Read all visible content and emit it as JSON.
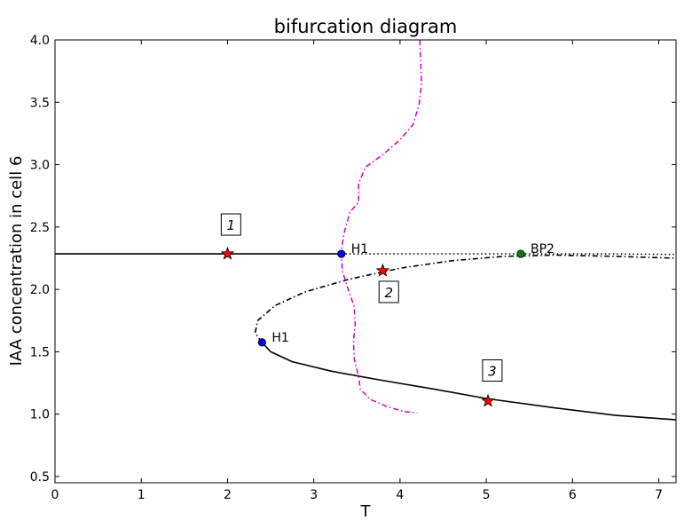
{
  "chart_data": {
    "type": "line",
    "title": "bifurcation diagram",
    "xlabel": "T",
    "ylabel": "IAA concentration in cell 6",
    "xlim": [
      0,
      7.2
    ],
    "ylim": [
      0.45,
      4.0
    ],
    "x_ticks": [
      0,
      1,
      2,
      3,
      4,
      5,
      6,
      7
    ],
    "y_ticks": [
      0.5,
      1.0,
      1.5,
      2.0,
      2.5,
      3.0,
      3.5,
      4.0
    ],
    "x_tick_labels": [
      "0",
      "1",
      "2",
      "3",
      "4",
      "5",
      "6",
      "7"
    ],
    "y_tick_labels": [
      "0.5",
      "1.0",
      "1.5",
      "2.0",
      "2.5",
      "3.0",
      "3.5",
      "4.0"
    ],
    "grid": false,
    "series": [
      {
        "style": "solid",
        "color": "#000000",
        "points": [
          [
            0,
            2.285
          ],
          [
            3.32,
            2.285
          ]
        ]
      },
      {
        "style": "dotted",
        "color": "#000000",
        "points": [
          [
            3.32,
            2.285
          ],
          [
            5.4,
            2.285
          ],
          [
            6.4,
            2.285
          ],
          [
            7.2,
            2.28
          ]
        ]
      },
      {
        "style": "dashdot",
        "color": "#000000",
        "points": [
          [
            2.4,
            1.575
          ],
          [
            2.32,
            1.65
          ],
          [
            2.35,
            1.75
          ],
          [
            2.55,
            1.87
          ],
          [
            2.9,
            1.98
          ],
          [
            3.4,
            2.08
          ],
          [
            4.0,
            2.17
          ],
          [
            4.6,
            2.23
          ],
          [
            5.2,
            2.265
          ],
          [
            5.8,
            2.275
          ],
          [
            6.5,
            2.265
          ],
          [
            7.2,
            2.25
          ]
        ]
      },
      {
        "style": "solid",
        "color": "#000000",
        "points": [
          [
            2.4,
            1.575
          ],
          [
            2.5,
            1.5
          ],
          [
            2.75,
            1.42
          ],
          [
            3.2,
            1.345
          ],
          [
            3.8,
            1.27
          ],
          [
            4.4,
            1.2
          ],
          [
            5.0,
            1.125
          ],
          [
            5.8,
            1.05
          ],
          [
            6.5,
            0.99
          ],
          [
            7.2,
            0.955
          ]
        ]
      },
      {
        "style": "dashdot",
        "color": "#cc00cc",
        "points": [
          [
            4.23,
            4.0
          ],
          [
            4.24,
            3.82
          ],
          [
            4.25,
            3.65
          ],
          [
            4.22,
            3.48
          ],
          [
            4.15,
            3.32
          ],
          [
            4.0,
            3.2
          ],
          [
            3.8,
            3.08
          ],
          [
            3.6,
            2.98
          ],
          [
            3.52,
            2.85
          ],
          [
            3.52,
            2.7
          ],
          [
            3.42,
            2.62
          ],
          [
            3.35,
            2.45
          ],
          [
            3.32,
            2.3
          ],
          [
            3.33,
            2.15
          ],
          [
            3.4,
            2.0
          ],
          [
            3.47,
            1.86
          ],
          [
            3.48,
            1.72
          ],
          [
            3.46,
            1.58
          ],
          [
            3.47,
            1.44
          ],
          [
            3.52,
            1.3
          ],
          [
            3.54,
            1.2
          ],
          [
            3.65,
            1.12
          ],
          [
            3.85,
            1.06
          ],
          [
            4.05,
            1.02
          ],
          [
            4.2,
            1.01
          ]
        ]
      }
    ],
    "special_points": [
      {
        "label": "H1",
        "x": 3.32,
        "y": 2.285,
        "color": "#0000ff"
      },
      {
        "label": "BP2",
        "x": 5.4,
        "y": 2.285,
        "color": "#008000"
      },
      {
        "label": "H1",
        "x": 2.4,
        "y": 1.575,
        "color": "#0000ff"
      }
    ],
    "stars": [
      {
        "label": "1",
        "x": 2.0,
        "y": 2.285,
        "color": "#ff0000",
        "label_x": 2.04,
        "label_y": 2.52
      },
      {
        "label": "2",
        "x": 3.8,
        "y": 2.15,
        "color": "#ff0000",
        "label_x": 3.87,
        "label_y": 1.98
      },
      {
        "label": "3",
        "x": 5.02,
        "y": 1.105,
        "color": "#ff0000",
        "label_x": 5.07,
        "label_y": 1.35
      }
    ]
  }
}
